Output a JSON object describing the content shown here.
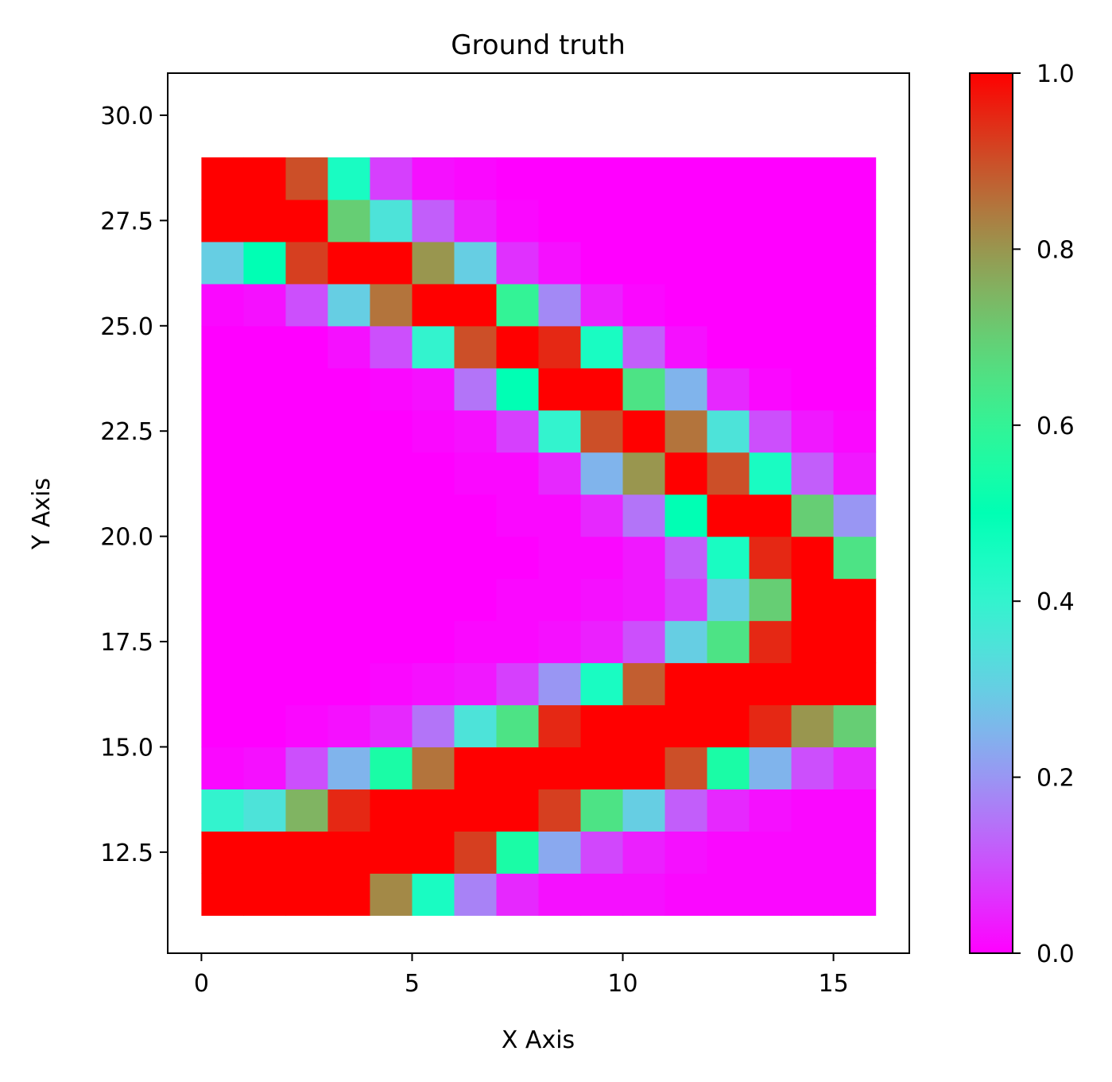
{
  "chart_data": {
    "type": "heatmap",
    "title": "Ground truth",
    "xlabel": "X Axis",
    "ylabel": "Y Axis",
    "x_ticks": [
      0,
      5,
      10,
      15
    ],
    "x_tick_labels": [
      "0",
      "5",
      "10",
      "15"
    ],
    "y_ticks": [
      12.5,
      15.0,
      17.5,
      20.0,
      22.5,
      25.0,
      27.5,
      30.0
    ],
    "y_tick_labels": [
      "12.5",
      "15.0",
      "17.5",
      "20.0",
      "22.5",
      "25.0",
      "27.5",
      "30.0"
    ],
    "xlim": [
      -0.8,
      16.8
    ],
    "ylim": [
      10.1,
      31.0
    ],
    "x_start": 0,
    "x_step": 1,
    "y_start": 11,
    "y_step": 1,
    "colormap": "rainbow",
    "colorbar": {
      "range": [
        0.0,
        1.0
      ],
      "ticks": [
        0.0,
        0.2,
        0.4,
        0.6,
        0.8,
        1.0
      ],
      "tick_labels": [
        "0.0",
        "0.2",
        "0.4",
        "0.6",
        "0.8",
        "1.0"
      ]
    },
    "rows_bottom_to_top": [
      [
        1.0,
        1.0,
        1.0,
        1.0,
        0.82,
        0.45,
        0.17,
        0.05,
        0.02,
        0.02,
        0.02,
        0.01,
        0.01,
        0.01,
        0.01,
        0.01
      ],
      [
        1.0,
        1.0,
        1.0,
        1.0,
        1.0,
        1.0,
        0.92,
        0.55,
        0.23,
        0.09,
        0.04,
        0.02,
        0.01,
        0.01,
        0.01,
        0.01
      ],
      [
        0.4,
        0.35,
        0.75,
        0.95,
        1.0,
        1.0,
        1.0,
        1.0,
        0.92,
        0.65,
        0.3,
        0.12,
        0.05,
        0.02,
        0.01,
        0.01
      ],
      [
        0.01,
        0.02,
        0.1,
        0.25,
        0.55,
        0.85,
        1.0,
        1.0,
        1.0,
        1.0,
        1.0,
        0.9,
        0.55,
        0.25,
        0.1,
        0.05
      ],
      [
        0.0,
        0.0,
        0.01,
        0.02,
        0.05,
        0.15,
        0.35,
        0.65,
        0.95,
        1.0,
        1.0,
        1.0,
        1.0,
        0.95,
        0.8,
        0.7
      ],
      [
        0.0,
        0.0,
        0.0,
        0.0,
        0.01,
        0.02,
        0.03,
        0.08,
        0.2,
        0.45,
        0.88,
        1.0,
        1.0,
        1.0,
        1.0,
        1.0
      ],
      [
        0.0,
        0.0,
        0.0,
        0.0,
        0.0,
        0.0,
        0.01,
        0.01,
        0.02,
        0.04,
        0.1,
        0.3,
        0.65,
        0.95,
        1.0,
        1.0
      ],
      [
        0.0,
        0.0,
        0.0,
        0.0,
        0.0,
        0.0,
        0.0,
        0.01,
        0.01,
        0.02,
        0.03,
        0.08,
        0.3,
        0.7,
        1.0,
        1.0
      ],
      [
        0.0,
        0.0,
        0.0,
        0.0,
        0.0,
        0.0,
        0.0,
        0.0,
        0.01,
        0.01,
        0.03,
        0.12,
        0.45,
        0.95,
        1.0,
        0.65
      ],
      [
        0.0,
        0.0,
        0.0,
        0.0,
        0.0,
        0.0,
        0.0,
        0.01,
        0.01,
        0.05,
        0.15,
        0.5,
        1.0,
        1.0,
        0.7,
        0.2
      ],
      [
        0.0,
        0.0,
        0.0,
        0.0,
        0.0,
        0.0,
        0.01,
        0.01,
        0.05,
        0.25,
        0.8,
        1.0,
        0.9,
        0.45,
        0.12,
        0.03
      ],
      [
        0.0,
        0.0,
        0.0,
        0.0,
        0.0,
        0.01,
        0.02,
        0.08,
        0.4,
        0.9,
        1.0,
        0.85,
        0.35,
        0.1,
        0.03,
        0.01
      ],
      [
        0.0,
        0.0,
        0.0,
        0.0,
        0.01,
        0.02,
        0.15,
        0.5,
        1.0,
        1.0,
        0.65,
        0.25,
        0.05,
        0.01,
        0.0,
        0.0
      ],
      [
        0.0,
        0.0,
        0.0,
        0.02,
        0.1,
        0.4,
        0.9,
        1.0,
        0.95,
        0.45,
        0.12,
        0.02,
        0.0,
        0.0,
        0.0,
        0.0
      ],
      [
        0.01,
        0.02,
        0.1,
        0.3,
        0.85,
        1.0,
        1.0,
        0.6,
        0.18,
        0.04,
        0.01,
        0.0,
        0.0,
        0.0,
        0.0,
        0.0
      ],
      [
        0.3,
        0.5,
        0.92,
        1.0,
        1.0,
        0.8,
        0.3,
        0.06,
        0.02,
        0.0,
        0.0,
        0.0,
        0.0,
        0.0,
        0.0,
        0.0
      ],
      [
        1.0,
        1.0,
        1.0,
        0.7,
        0.35,
        0.12,
        0.04,
        0.01,
        0.0,
        0.0,
        0.0,
        0.0,
        0.0,
        0.0,
        0.0,
        0.0
      ],
      [
        1.0,
        1.0,
        0.9,
        0.45,
        0.08,
        0.02,
        0.01,
        0.0,
        0.0,
        0.0,
        0.0,
        0.0,
        0.0,
        0.0,
        0.0,
        0.0
      ]
    ]
  }
}
